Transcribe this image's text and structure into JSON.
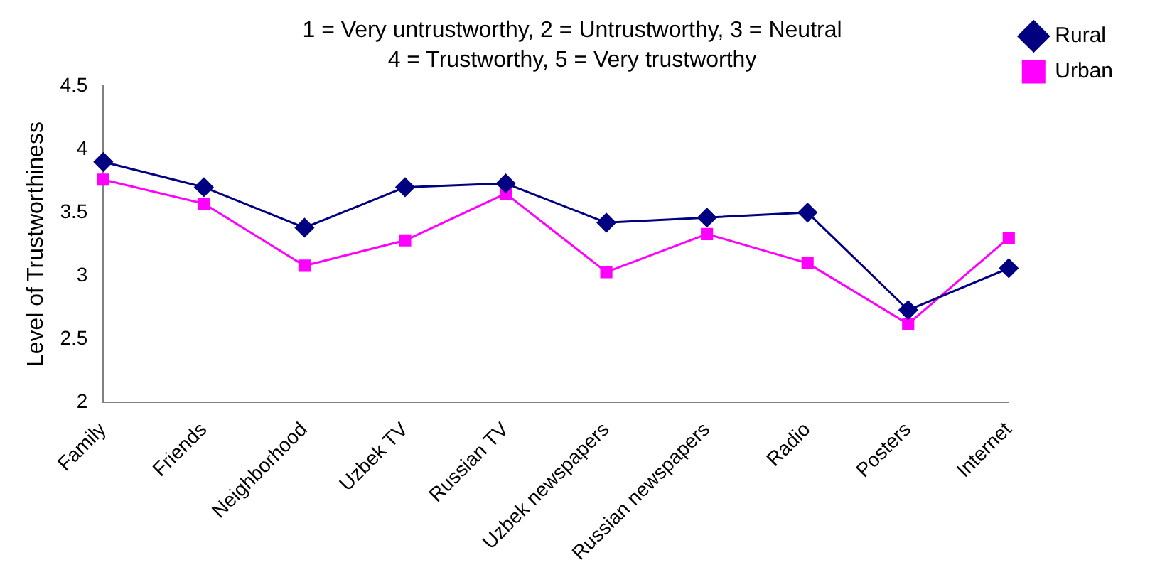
{
  "chart_data": {
    "type": "line",
    "title": "1 = Very untrustworthy, 2 = Untrustworthy, 3 = Neutral",
    "subtitle": "4 = Trustworthy, 5 = Very trustworthy",
    "ylabel": "Level of Trustworthiness",
    "categories": [
      "Family",
      "Friends",
      "Neighborhood",
      "Uzbek TV",
      "Russian TV",
      "Uzbek newspapers",
      "Russian newspapers",
      "Radio",
      "Posters",
      "Internet"
    ],
    "series": [
      {
        "name": "Rural",
        "color": "#000080",
        "marker": "diamond",
        "values": [
          3.9,
          3.7,
          3.38,
          3.7,
          3.73,
          3.42,
          3.46,
          3.5,
          2.73,
          3.06
        ]
      },
      {
        "name": "Urban",
        "color": "#ff00ff",
        "marker": "square",
        "values": [
          3.76,
          3.57,
          3.08,
          3.28,
          3.65,
          3.03,
          3.33,
          3.1,
          2.62,
          3.3
        ]
      }
    ],
    "ylim": [
      2,
      4.5
    ],
    "yticks": [
      2,
      2.5,
      3,
      3.5,
      4,
      4.5
    ],
    "grid": false,
    "legend": "top right"
  }
}
